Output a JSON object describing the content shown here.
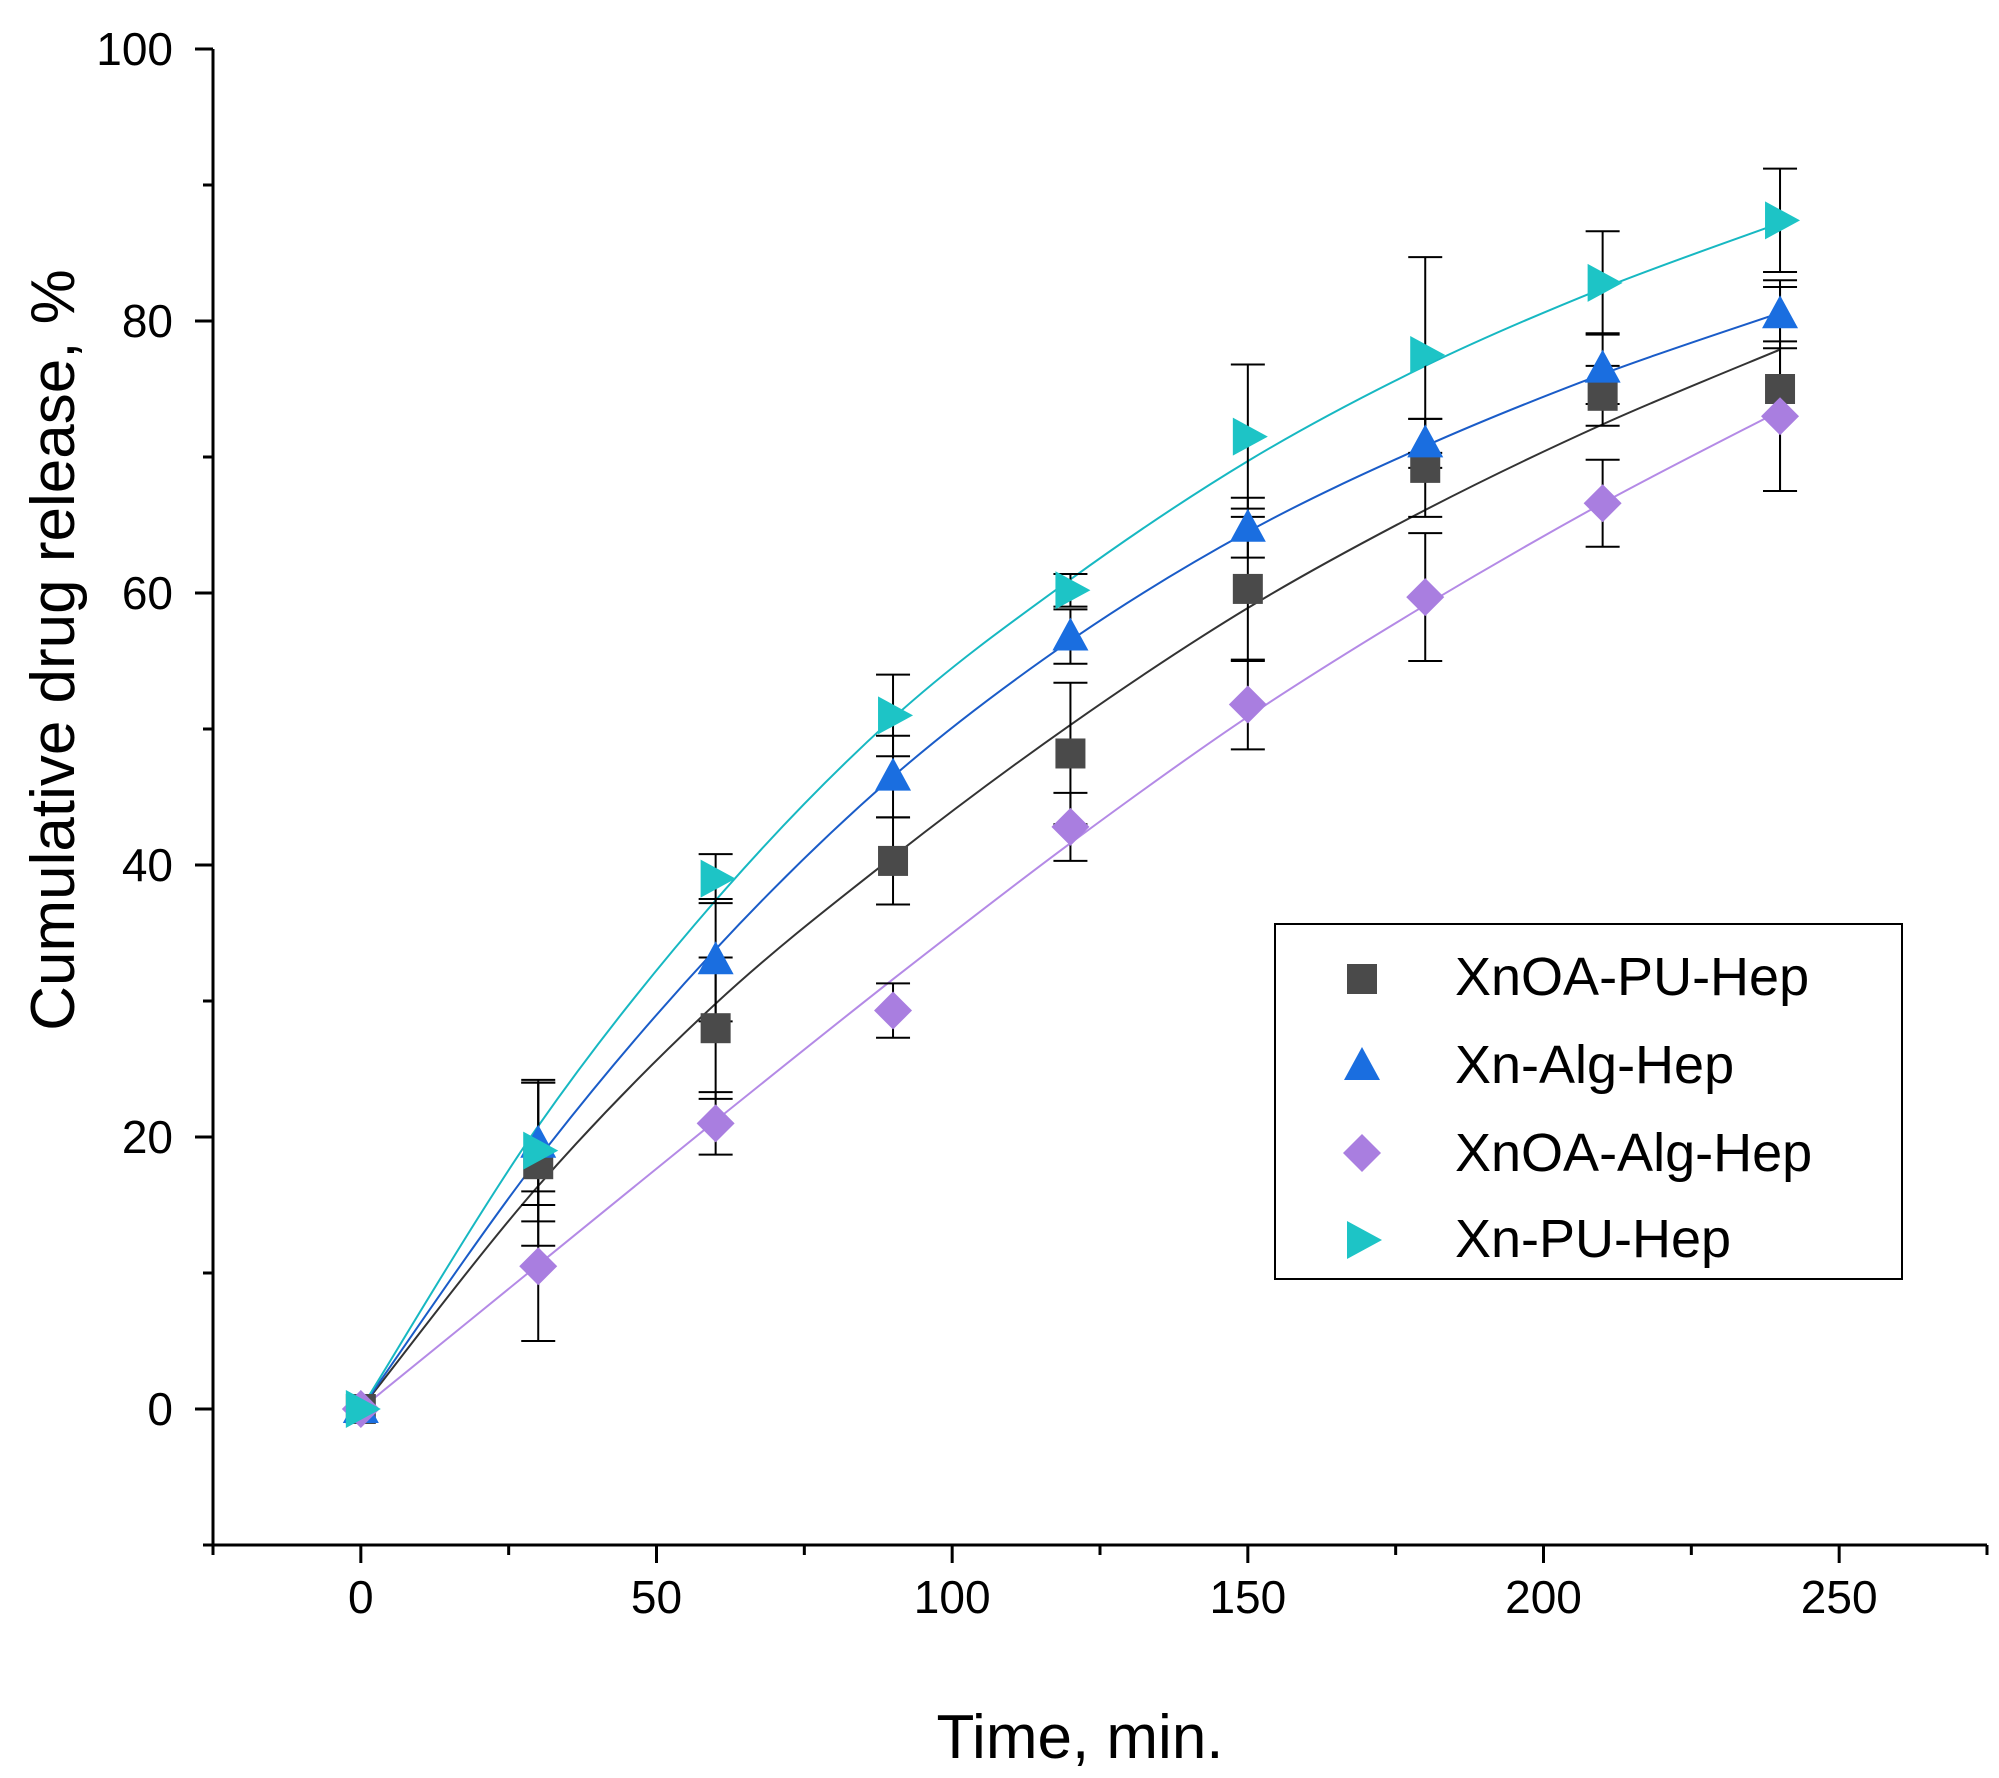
{
  "chart_data": {
    "type": "scatter",
    "xlabel": "Time, min.",
    "ylabel": "Cumulative drug release, %",
    "xlim": [
      -25,
      275
    ],
    "ylim": [
      -10,
      100
    ],
    "x_ticks": [
      "0",
      "50",
      "100",
      "150",
      "200",
      "250"
    ],
    "x_tick_values": [
      0,
      50,
      100,
      150,
      200,
      250
    ],
    "x_minor_tick_values": [
      -25,
      25,
      75,
      125,
      175,
      225,
      275
    ],
    "y_ticks": [
      "0",
      "20",
      "40",
      "60",
      "80",
      "100"
    ],
    "y_tick_values": [
      0,
      20,
      40,
      60,
      80,
      100
    ],
    "y_minor_tick_values": [
      -10,
      10,
      30,
      50,
      70,
      90
    ],
    "grid": false,
    "legend_position": "center-right",
    "x": [
      0,
      30,
      60,
      90,
      120,
      150,
      180,
      210,
      240
    ],
    "series": [
      {
        "name": "XnOA-PU-Hep",
        "marker": "square",
        "color": "#4a4a4a",
        "line_color": "#333333",
        "values": [
          0,
          18,
          28,
          40.3,
          48.2,
          60.3,
          69.2,
          74.5,
          75
        ],
        "error": [
          0,
          6,
          5.2,
          3.2,
          5.2,
          5.3,
          3.6,
          2.2,
          7.5
        ],
        "fit": [
          0,
          16.4,
          29.8,
          40.6,
          50.3,
          58.9,
          66.1,
          72.4,
          77.9
        ]
      },
      {
        "name": "Xn-Alg-Hep",
        "marker": "triangle-up",
        "color": "#1a6ee0",
        "line_color": "#1a5cc8",
        "values": [
          0,
          19.5,
          33,
          46.5,
          56.8,
          64.8,
          71,
          76.5,
          80.5
        ],
        "error": [
          0,
          4.5,
          4.5,
          3.0,
          2.0,
          2.2,
          1.8,
          2.6,
          2.5
        ],
        "fit": [
          0,
          18.4,
          33.8,
          46.5,
          56.5,
          64.5,
          70.8,
          76.1,
          80.6
        ]
      },
      {
        "name": "XnOA-Alg-Hep",
        "marker": "diamond",
        "color": "#a97ee0",
        "line_color": "#b48ae6",
        "values": [
          0,
          10.5,
          21,
          29.3,
          42.8,
          51.8,
          59.7,
          66.6,
          73
        ],
        "error": [
          0,
          5.5,
          2.3,
          2.0,
          2.5,
          3.3,
          4.7,
          3.2,
          5.5
        ],
        "fit": [
          0,
          10.6,
          21.2,
          31.6,
          41.6,
          50.9,
          59.1,
          66.6,
          73.4
        ]
      },
      {
        "name": "Xn-PU-Hep",
        "marker": "triangle-right",
        "color": "#1dc4c6",
        "line_color": "#17b8c2",
        "values": [
          0,
          19,
          39,
          51,
          60.2,
          71.5,
          77.5,
          82.8,
          87.4
        ],
        "error": [
          0,
          5.2,
          1.8,
          3.0,
          1.2,
          5.3,
          7.2,
          3.8,
          3.8
        ],
        "fit": [
          0,
          20.8,
          37.4,
          50.8,
          61,
          69.7,
          76.7,
          82.4,
          87.2
        ]
      }
    ]
  }
}
